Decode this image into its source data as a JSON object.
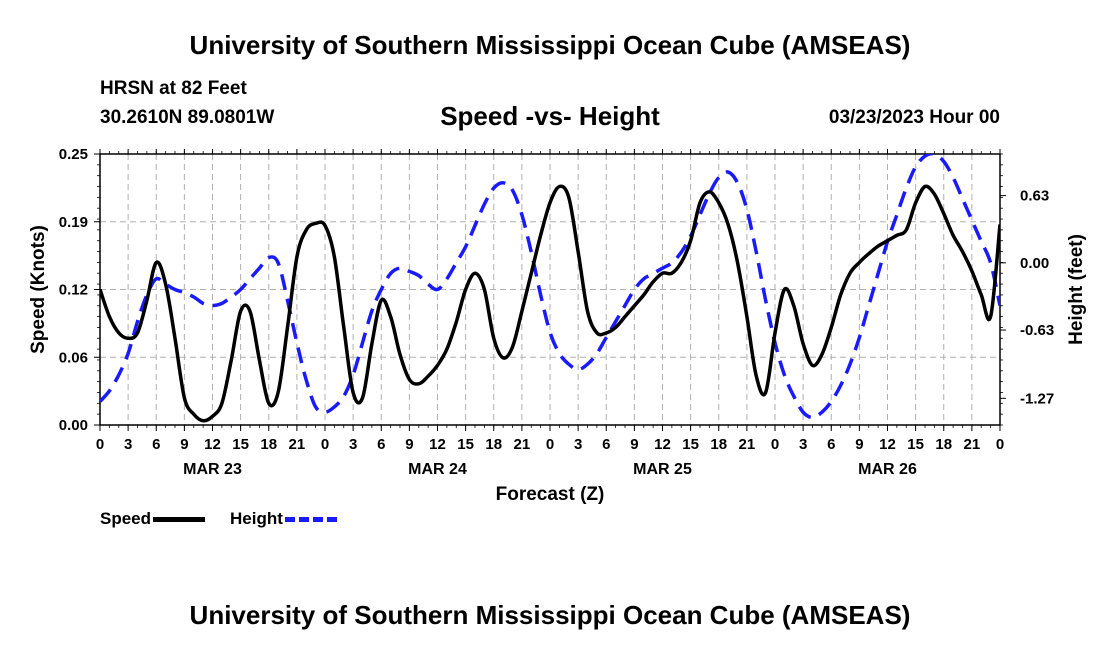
{
  "header": {
    "title": "University of Southern Mississippi Ocean Cube (AMSEAS)",
    "station": "HRSN at 82 Feet",
    "coords": "30.2610N  89.0801W",
    "subtitle": "Speed -vs- Height",
    "date": "03/23/2023 Hour 00"
  },
  "footer": {
    "title": "University of Southern Mississippi Ocean Cube (AMSEAS)"
  },
  "legend": {
    "speed_label": "Speed",
    "height_label": "Height",
    "speed_color": "#000000",
    "height_color": "#1a1aff"
  },
  "chart_data": {
    "type": "line",
    "xlabel": "Forecast (Z)",
    "ylabel_left": "Speed (Knots)",
    "ylabel_right": "Height (feet)",
    "x_range_hours": [
      0,
      96
    ],
    "x_ticks": [
      "0",
      "3",
      "6",
      "9",
      "12",
      "15",
      "18",
      "21",
      "0",
      "3",
      "6",
      "9",
      "12",
      "15",
      "18",
      "21",
      "0",
      "3",
      "6",
      "9",
      "12",
      "15",
      "18",
      "21",
      "0",
      "3",
      "6",
      "9",
      "12",
      "15",
      "18",
      "21",
      "0"
    ],
    "day_labels": [
      {
        "label": "MAR 23",
        "hour": 12
      },
      {
        "label": "MAR 24",
        "hour": 36
      },
      {
        "label": "MAR 25",
        "hour": 60
      },
      {
        "label": "MAR 26",
        "hour": 84
      }
    ],
    "ylim_left": [
      0,
      0.25
    ],
    "y_ticks_left": [
      "0.00",
      "0.06",
      "0.12",
      "0.19",
      "0.25"
    ],
    "y_ticks_left_values": [
      0,
      0.0625,
      0.125,
      0.1875,
      0.25
    ],
    "ylim_right": [
      -1.52,
      1.02
    ],
    "y_ticks_right": [
      "-1.27",
      "-0.63",
      "0.00",
      "0.63"
    ],
    "y_ticks_right_values": [
      -1.27,
      -0.63,
      0.0,
      0.63
    ],
    "grid": true,
    "series": [
      {
        "name": "Speed",
        "axis": "left",
        "x": [
          0,
          1,
          2,
          3,
          4,
          5,
          6,
          7,
          8,
          9,
          10,
          11,
          12,
          13,
          14,
          15,
          16,
          17,
          18,
          19,
          20,
          21,
          22,
          23,
          24,
          25,
          26,
          27,
          28,
          29,
          30,
          31,
          32,
          33,
          34,
          35,
          36,
          37,
          38,
          39,
          40,
          41,
          42,
          43,
          44,
          45,
          46,
          47,
          48,
          49,
          50,
          51,
          52,
          53,
          54,
          55,
          56,
          57,
          58,
          59,
          60,
          61,
          62,
          63,
          64,
          65,
          66,
          67,
          68,
          69,
          70,
          71,
          72,
          73,
          74,
          75,
          76,
          77,
          78,
          79,
          80,
          81,
          82,
          83,
          84,
          85,
          86,
          87,
          88,
          89,
          90,
          91,
          92,
          93,
          94,
          95,
          96
        ],
        "values": [
          0.125,
          0.1,
          0.085,
          0.08,
          0.085,
          0.115,
          0.15,
          0.13,
          0.08,
          0.025,
          0.01,
          0.004,
          0.008,
          0.02,
          0.06,
          0.105,
          0.105,
          0.06,
          0.02,
          0.03,
          0.09,
          0.155,
          0.18,
          0.186,
          0.184,
          0.155,
          0.09,
          0.03,
          0.025,
          0.075,
          0.115,
          0.1,
          0.065,
          0.042,
          0.038,
          0.045,
          0.055,
          0.07,
          0.095,
          0.125,
          0.14,
          0.125,
          0.08,
          0.062,
          0.072,
          0.105,
          0.14,
          0.175,
          0.205,
          0.22,
          0.21,
          0.16,
          0.105,
          0.085,
          0.085,
          0.09,
          0.1,
          0.11,
          0.12,
          0.132,
          0.14,
          0.14,
          0.15,
          0.17,
          0.205,
          0.215,
          0.205,
          0.185,
          0.15,
          0.1,
          0.045,
          0.03,
          0.085,
          0.125,
          0.11,
          0.075,
          0.055,
          0.065,
          0.09,
          0.12,
          0.14,
          0.15,
          0.158,
          0.165,
          0.17,
          0.175,
          0.18,
          0.205,
          0.22,
          0.213,
          0.195,
          0.175,
          0.16,
          0.142,
          0.12,
          0.1,
          0.185
        ]
      },
      {
        "name": "Height",
        "axis": "right",
        "x": [
          0,
          1,
          2,
          3,
          4,
          5,
          6,
          7,
          8,
          9,
          10,
          11,
          12,
          13,
          14,
          15,
          16,
          17,
          18,
          19,
          20,
          21,
          22,
          23,
          24,
          25,
          26,
          27,
          28,
          29,
          30,
          31,
          32,
          33,
          34,
          35,
          36,
          37,
          38,
          39,
          40,
          41,
          42,
          43,
          44,
          45,
          46,
          47,
          48,
          49,
          50,
          51,
          52,
          53,
          54,
          55,
          56,
          57,
          58,
          59,
          60,
          61,
          62,
          63,
          64,
          65,
          66,
          67,
          68,
          69,
          70,
          71,
          72,
          73,
          74,
          75,
          76,
          77,
          78,
          79,
          80,
          81,
          82,
          83,
          84,
          85,
          86,
          87,
          88,
          89,
          90,
          91,
          92,
          93,
          94,
          95,
          96
        ],
        "values": [
          -1.3,
          -1.2,
          -1.05,
          -0.85,
          -0.55,
          -0.3,
          -0.15,
          -0.2,
          -0.25,
          -0.28,
          -0.32,
          -0.38,
          -0.4,
          -0.38,
          -0.32,
          -0.25,
          -0.15,
          -0.05,
          0.05,
          0.0,
          -0.35,
          -0.75,
          -1.1,
          -1.35,
          -1.4,
          -1.35,
          -1.25,
          -1.05,
          -0.75,
          -0.45,
          -0.25,
          -0.1,
          -0.05,
          -0.08,
          -0.12,
          -0.2,
          -0.25,
          -0.15,
          0.0,
          0.15,
          0.35,
          0.55,
          0.7,
          0.75,
          0.68,
          0.45,
          0.1,
          -0.3,
          -0.65,
          -0.85,
          -0.95,
          -1.0,
          -0.95,
          -0.85,
          -0.7,
          -0.55,
          -0.4,
          -0.25,
          -0.15,
          -0.1,
          -0.05,
          0.0,
          0.1,
          0.25,
          0.45,
          0.65,
          0.8,
          0.85,
          0.75,
          0.5,
          0.1,
          -0.35,
          -0.75,
          -1.05,
          -1.25,
          -1.4,
          -1.45,
          -1.4,
          -1.3,
          -1.15,
          -0.95,
          -0.7,
          -0.4,
          -0.1,
          0.2,
          0.45,
          0.7,
          0.9,
          1.0,
          1.02,
          0.95,
          0.8,
          0.6,
          0.4,
          0.2,
          0.0,
          -0.4
        ]
      }
    ]
  }
}
